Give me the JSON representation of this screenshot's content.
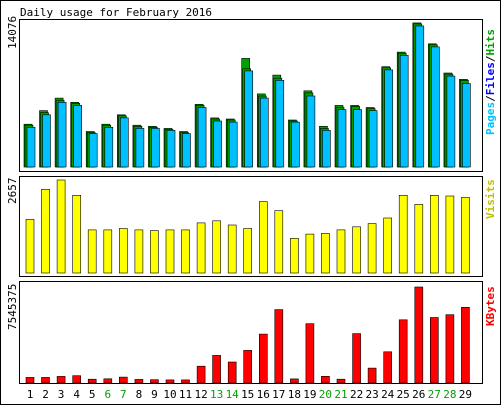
{
  "title": "Daily usage for February 2016",
  "colors": {
    "pages": "#00c0ff",
    "files": "#00a000",
    "hits": "#00a000",
    "visits": "#ffff00",
    "kbytes": "#ff0000",
    "label_pages": "#00c0ff",
    "label_files": "#0000ff",
    "label_hits": "#00a000",
    "label_visits": "#c0c000",
    "label_kbytes": "#ff0000",
    "label_slash": "#000000",
    "weekend": "#00a000",
    "weekday": "#000000"
  },
  "chart_data": [
    {
      "type": "bar",
      "title": "Daily usage for February 2016",
      "ylabel_parts": [
        "Pages",
        "/",
        "Files",
        "/",
        "Hits"
      ],
      "y_tick": "14076",
      "ylim": [
        0,
        14076
      ],
      "categories": [
        "1",
        "2",
        "3",
        "4",
        "5",
        "6",
        "7",
        "8",
        "9",
        "10",
        "11",
        "12",
        "13",
        "14",
        "15",
        "16",
        "17",
        "18",
        "19",
        "20",
        "21",
        "22",
        "23",
        "24",
        "25",
        "26",
        "27",
        "28",
        "29"
      ],
      "series": [
        {
          "name": "Hits",
          "values": [
            4100,
            5400,
            6600,
            6200,
            3400,
            4100,
            5000,
            4000,
            3900,
            3700,
            3400,
            6000,
            4700,
            4600,
            10400,
            7000,
            8800,
            4500,
            7300,
            3900,
            5900,
            5900,
            5700,
            9600,
            11000,
            13800,
            11800,
            9000,
            8400
          ]
        },
        {
          "name": "Files",
          "values": [
            4000,
            5200,
            6400,
            6100,
            3300,
            4000,
            4900,
            3900,
            3800,
            3600,
            3300,
            5900,
            4600,
            4500,
            9400,
            6800,
            8500,
            4400,
            7100,
            3700,
            5700,
            5800,
            5600,
            9500,
            10900,
            13700,
            11700,
            8900,
            8300
          ]
        },
        {
          "name": "Pages",
          "values": [
            3800,
            5000,
            6200,
            5900,
            3200,
            3800,
            4700,
            3700,
            3700,
            3500,
            3200,
            5700,
            4400,
            4300,
            9200,
            6600,
            8300,
            4300,
            6800,
            3500,
            5500,
            5500,
            5400,
            9300,
            10700,
            13500,
            11500,
            8700,
            8000
          ]
        }
      ]
    },
    {
      "type": "bar",
      "ylabel": "Visits",
      "y_tick": "2657",
      "ylim": [
        0,
        2657
      ],
      "categories": [
        "1",
        "2",
        "3",
        "4",
        "5",
        "6",
        "7",
        "8",
        "9",
        "10",
        "11",
        "12",
        "13",
        "14",
        "15",
        "16",
        "17",
        "18",
        "19",
        "20",
        "21",
        "22",
        "23",
        "24",
        "25",
        "26",
        "27",
        "28",
        "29"
      ],
      "series": [
        {
          "name": "Visits",
          "values": [
            1530,
            2390,
            2657,
            2220,
            1230,
            1230,
            1270,
            1230,
            1210,
            1230,
            1230,
            1430,
            1490,
            1370,
            1270,
            2040,
            1780,
            990,
            1110,
            1130,
            1230,
            1320,
            1410,
            1570,
            2220,
            1960,
            2220,
            2200,
            2160
          ]
        }
      ]
    },
    {
      "type": "bar",
      "ylabel": "KBytes",
      "y_tick": "7545375",
      "ylim": [
        0,
        7545375
      ],
      "categories": [
        "1",
        "2",
        "3",
        "4",
        "5",
        "6",
        "7",
        "8",
        "9",
        "10",
        "11",
        "12",
        "13",
        "14",
        "15",
        "16",
        "17",
        "18",
        "19",
        "20",
        "21",
        "22",
        "23",
        "24",
        "25",
        "26",
        "27",
        "28",
        "29"
      ],
      "series": [
        {
          "name": "KBytes",
          "values": [
            440000,
            440000,
            520000,
            570000,
            300000,
            330000,
            460000,
            280000,
            260000,
            240000,
            240000,
            1320000,
            2170000,
            1650000,
            2560000,
            3840000,
            5770000,
            320000,
            4660000,
            530000,
            300000,
            3880000,
            1170000,
            2450000,
            4970000,
            7545375,
            5150000,
            5370000,
            5950000
          ]
        }
      ]
    }
  ]
}
